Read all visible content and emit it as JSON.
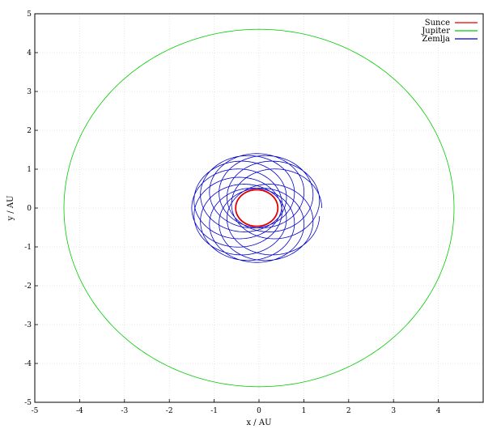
{
  "chart_data": {
    "type": "line",
    "xlabel": "x / AU",
    "ylabel": "y / AU",
    "xlim": [
      -5,
      5
    ],
    "ylim": [
      -5,
      5
    ],
    "x_ticks": [
      "-5",
      "-4",
      "-3",
      "-2",
      "-1",
      "0",
      "1",
      "2",
      "3",
      "4"
    ],
    "y_ticks": [
      "-5",
      "-4",
      "-3",
      "-2",
      "-1",
      "0",
      "1",
      "2",
      "3",
      "4",
      "5"
    ],
    "grid": true,
    "legend_position": "top-right",
    "series": [
      {
        "name": "Sunce",
        "color": "#e00000",
        "orbit": {
          "kind": "ellipse",
          "cx": -0.05,
          "cy": 0.0,
          "rx": 0.47,
          "ry": 0.47,
          "loops": 1
        }
      },
      {
        "name": "Jupiter",
        "color": "#00cc00",
        "orbit": {
          "kind": "ellipse",
          "cx": 0.0,
          "cy": 0.0,
          "rx": 4.35,
          "ry": 4.6,
          "loops": 1
        }
      },
      {
        "name": "Zemlja",
        "color": "#0000cc",
        "orbit": {
          "kind": "epicycle",
          "cx": -0.05,
          "cy": 0.0,
          "R": 0.45,
          "r": 1.0,
          "loops": 12
        }
      }
    ]
  }
}
